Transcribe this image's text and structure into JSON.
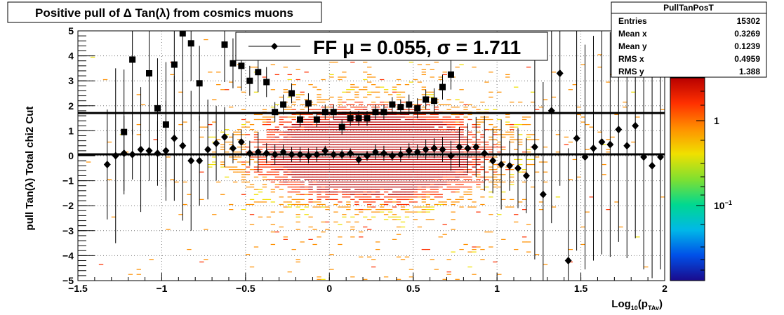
{
  "chart_data": {
    "type": "heatmap",
    "title": "Positive pull of Δ Tan(λ) from cosmics muons",
    "xlabel_base": "Log",
    "xlabel_sub": "10",
    "xlabel_paren_open": "(p",
    "xlabel_sub2": "TAv",
    "xlabel_paren_close": ")",
    "ylabel": "pull Tan(λ)  Total chi2 Cut",
    "xlim": [
      -1.5,
      2
    ],
    "ylim": [
      -5,
      5
    ],
    "x_ticks": [
      -1.5,
      -1,
      -0.5,
      0,
      0.5,
      1,
      1.5,
      2
    ],
    "x_tick_labels": [
      "−1.5",
      "−1",
      "−0.5",
      "0",
      "0.5",
      "1",
      "1.5",
      "2"
    ],
    "y_ticks": [
      -5,
      -4,
      -3,
      -2,
      -1,
      0,
      1,
      2,
      3,
      4,
      5
    ],
    "y_tick_labels": [
      "−5",
      "−4",
      "−3",
      "−2",
      "−1",
      "0",
      "1",
      "2",
      "3",
      "4",
      "5"
    ],
    "grid": true,
    "legend": {
      "placement": "top-center",
      "text": "FF μ =  0.055, σ =   1.711"
    },
    "fit_lines": {
      "mean": 0.055,
      "sigma": 1.711
    },
    "stats_box": {
      "title": "PullTanPosT",
      "rows": [
        {
          "label": "Entries",
          "value": "15302"
        },
        {
          "label": "Mean x",
          "value": "0.3269"
        },
        {
          "label": "Mean y",
          "value": "0.1239"
        },
        {
          "label": "RMS x",
          "value": "0.4959"
        },
        {
          "label": "RMS y",
          "value": "1.388"
        }
      ]
    },
    "color_scale": {
      "type": "log",
      "tick_labels": [
        {
          "base": "1",
          "exp": ""
        },
        {
          "base": "10",
          "exp": "−1"
        }
      ],
      "colors": [
        "#1a0a8c",
        "#0050e8",
        "#00b8e8",
        "#00d890",
        "#80e030",
        "#f0e000",
        "#ff9000",
        "#ff3000",
        "#b80000"
      ]
    },
    "series": [
      {
        "marker": "diamond",
        "x": [
          -1.325,
          -1.275,
          -1.225,
          -1.175,
          -1.125,
          -1.075,
          -1.025,
          -0.975,
          -0.925,
          -0.875,
          -0.825,
          -0.775,
          -0.725,
          -0.675,
          -0.625,
          -0.575,
          -0.525,
          -0.475,
          -0.425,
          -0.375,
          -0.325,
          -0.275,
          -0.225,
          -0.175,
          -0.125,
          -0.075,
          -0.025,
          0.025,
          0.075,
          0.125,
          0.175,
          0.225,
          0.275,
          0.325,
          0.375,
          0.425,
          0.475,
          0.525,
          0.575,
          0.625,
          0.675,
          0.725,
          0.775,
          0.825,
          0.875,
          0.925,
          0.975,
          1.025,
          1.075,
          1.125,
          1.175,
          1.225,
          1.275,
          1.325,
          1.375,
          1.425,
          1.475,
          1.525,
          1.575,
          1.625,
          1.675,
          1.725,
          1.775,
          1.825,
          1.875,
          1.925,
          1.975
        ],
        "y": [
          -0.35,
          0.0,
          0.1,
          0.05,
          0.25,
          0.2,
          0.1,
          0.2,
          0.7,
          0.4,
          -0.2,
          -0.2,
          0.25,
          0.5,
          0.75,
          0.3,
          0.55,
          0.1,
          0.15,
          0.1,
          0.05,
          0.15,
          0.05,
          0.05,
          0.0,
          0.05,
          0.2,
          0.05,
          0.05,
          0.1,
          -0.15,
          0.0,
          0.15,
          0.1,
          0.0,
          0.05,
          0.2,
          0.15,
          0.25,
          0.3,
          0.25,
          0.0,
          0.35,
          0.3,
          0.35,
          0.1,
          -0.2,
          -0.35,
          -0.4,
          -0.5,
          -0.8,
          0.35,
          -1.55,
          1.8,
          3.3,
          -4.2,
          0.7,
          -0.05,
          0.3,
          0.55,
          0.45,
          1.05,
          0.4,
          1.2,
          -0.05,
          -0.4,
          -0.05
        ],
        "err": [
          2.2,
          3.5,
          1.5,
          1.0,
          2.5,
          1.2,
          1.3,
          2.0,
          2.5,
          3.0,
          2.8,
          1.8,
          2.0,
          1.5,
          1.2,
          0.6,
          0.5,
          0.5,
          0.8,
          0.4,
          0.4,
          0.3,
          0.3,
          0.3,
          0.3,
          0.3,
          0.2,
          0.2,
          0.2,
          0.2,
          0.2,
          0.2,
          0.3,
          0.3,
          0.2,
          0.3,
          0.3,
          0.3,
          0.4,
          0.4,
          0.5,
          0.6,
          0.8,
          1.0,
          1.2,
          1.5,
          1.3,
          1.8,
          1.0,
          1.6,
          1.5,
          4.5,
          4.5,
          4.5,
          4.5,
          4.5,
          4.5,
          4.5,
          4.5,
          4.5,
          4.5,
          4.5,
          4.5,
          4.5,
          4.5,
          4.5,
          4.5
        ]
      },
      {
        "marker": "square",
        "x": [
          -1.225,
          -1.175,
          -1.075,
          -1.025,
          -0.975,
          -0.925,
          -0.875,
          -0.825,
          -0.775,
          -0.625,
          -0.575,
          -0.525,
          -0.475,
          -0.425,
          -0.375,
          -0.325,
          -0.275,
          -0.225,
          -0.175,
          -0.125,
          -0.075,
          -0.025,
          0.025,
          0.075,
          0.125,
          0.175,
          0.225,
          0.275,
          0.325,
          0.375,
          0.425,
          0.475,
          0.525,
          0.575,
          0.625,
          0.675,
          0.725
        ],
        "y": [
          0.95,
          3.85,
          3.3,
          1.9,
          1.25,
          3.65,
          4.9,
          4.5,
          2.9,
          4.45,
          3.7,
          3.6,
          3.0,
          3.35,
          2.95,
          1.75,
          2.05,
          2.5,
          1.45,
          2.1,
          1.45,
          1.75,
          1.75,
          1.15,
          1.5,
          1.5,
          1.5,
          1.75,
          1.75,
          2.05,
          1.95,
          2.05,
          1.9,
          2.25,
          2.2,
          2.75,
          3.25
        ],
        "err": [
          2.5,
          3.0,
          2.5,
          2.0,
          2.5,
          2.0,
          1.5,
          1.5,
          1.5,
          1.5,
          1.0,
          1.0,
          0.6,
          0.8,
          0.6,
          0.4,
          0.4,
          0.4,
          0.3,
          0.4,
          0.3,
          0.3,
          0.3,
          0.3,
          0.3,
          0.3,
          0.3,
          0.3,
          0.3,
          0.3,
          0.3,
          0.4,
          0.4,
          0.4,
          0.5,
          0.5,
          0.6
        ]
      }
    ]
  }
}
